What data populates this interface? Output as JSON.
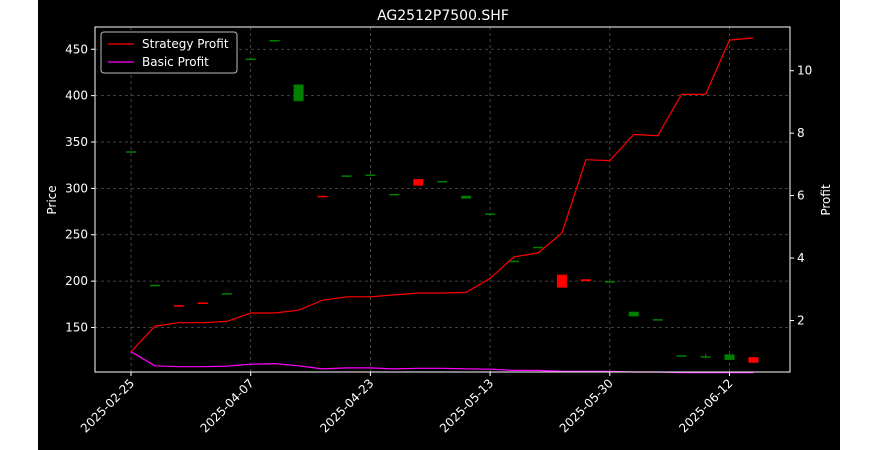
{
  "chart_data": {
    "type": "candlestick",
    "title": "AG2512P7500.SHF",
    "xlabel": "",
    "ylabel": "Price",
    "y2label": "Profit",
    "ylim": [
      102,
      474
    ],
    "y2lim": [
      0.35,
      11.4
    ],
    "yticks": [
      150,
      200,
      250,
      300,
      350,
      400,
      450
    ],
    "y2ticks": [
      2,
      4,
      6,
      8,
      10
    ],
    "xticks": [
      "2025-02-25",
      "2025-04-07",
      "2025-04-23",
      "2025-05-13",
      "2025-05-30",
      "2025-06-12"
    ],
    "xtick_index": [
      0,
      5,
      10,
      15,
      20,
      25
    ],
    "grid": true,
    "legend_position": "top-left",
    "colors": {
      "background": "#000000",
      "up": "#008000",
      "down": "#ff0000",
      "strategy": "#ff0000",
      "basic": "#ff00ff",
      "grid": "#555555"
    },
    "candles": [
      {
        "o": 340,
        "c": 340,
        "h": 340,
        "l": 340
      },
      {
        "o": 195,
        "c": 196,
        "h": 196,
        "l": 195
      },
      {
        "o": 174,
        "c": 173,
        "h": 174,
        "l": 172
      },
      {
        "o": 177,
        "c": 176,
        "h": 177,
        "l": 176
      },
      {
        "o": 186,
        "c": 187,
        "h": 187,
        "l": 186
      },
      {
        "o": 440,
        "c": 440,
        "h": 440,
        "l": 440
      },
      {
        "o": 459,
        "c": 460,
        "h": 460,
        "l": 459
      },
      {
        "o": 394,
        "c": 412,
        "h": 412,
        "l": 394
      },
      {
        "o": 292,
        "c": 291,
        "h": 292,
        "l": 291
      },
      {
        "o": 314,
        "c": 314,
        "h": 314,
        "l": 314
      },
      {
        "o": 315,
        "c": 315,
        "h": 315,
        "l": 315
      },
      {
        "o": 294,
        "c": 294,
        "h": 294,
        "l": 294
      },
      {
        "o": 310,
        "c": 303,
        "h": 310,
        "l": 303
      },
      {
        "o": 308,
        "c": 308,
        "h": 308,
        "l": 308
      },
      {
        "o": 289,
        "c": 292,
        "h": 292,
        "l": 289
      },
      {
        "o": 273,
        "c": 273,
        "h": 273,
        "l": 273
      },
      {
        "o": 222,
        "c": 222,
        "h": 222,
        "l": 222
      },
      {
        "o": 237,
        "c": 237,
        "h": 237,
        "l": 237
      },
      {
        "o": 207,
        "c": 193,
        "h": 207,
        "l": 193
      },
      {
        "o": 202,
        "c": 200,
        "h": 202,
        "l": 200
      },
      {
        "o": 200,
        "c": 200,
        "h": 200,
        "l": 200
      },
      {
        "o": 162,
        "c": 167,
        "h": 167,
        "l": 162
      },
      {
        "o": 159,
        "c": 159,
        "h": 159,
        "l": 159
      },
      {
        "o": 119,
        "c": 120,
        "h": 120,
        "l": 119
      },
      {
        "o": 118,
        "c": 119,
        "h": 122,
        "l": 117
      },
      {
        "o": 115,
        "c": 121,
        "h": 121,
        "l": 115
      },
      {
        "o": 118,
        "c": 112,
        "h": 118,
        "l": 112
      }
    ],
    "series": [
      {
        "name": "Strategy Profit",
        "color": "#ff0000",
        "values": [
          1.0,
          1.82,
          1.93,
          1.93,
          1.97,
          2.24,
          2.24,
          2.33,
          2.65,
          2.76,
          2.76,
          2.82,
          2.88,
          2.88,
          2.9,
          3.35,
          4.04,
          4.16,
          4.8,
          7.15,
          7.12,
          7.96,
          7.92,
          9.24,
          9.24,
          10.98,
          11.05
        ]
      },
      {
        "name": "Basic Profit",
        "color": "#ff00ff",
        "values": [
          1.0,
          0.55,
          0.52,
          0.52,
          0.54,
          0.6,
          0.62,
          0.55,
          0.45,
          0.48,
          0.48,
          0.45,
          0.47,
          0.47,
          0.45,
          0.44,
          0.4,
          0.4,
          0.37,
          0.37,
          0.37,
          0.35,
          0.35,
          0.33,
          0.33,
          0.33,
          0.33
        ]
      }
    ]
  }
}
